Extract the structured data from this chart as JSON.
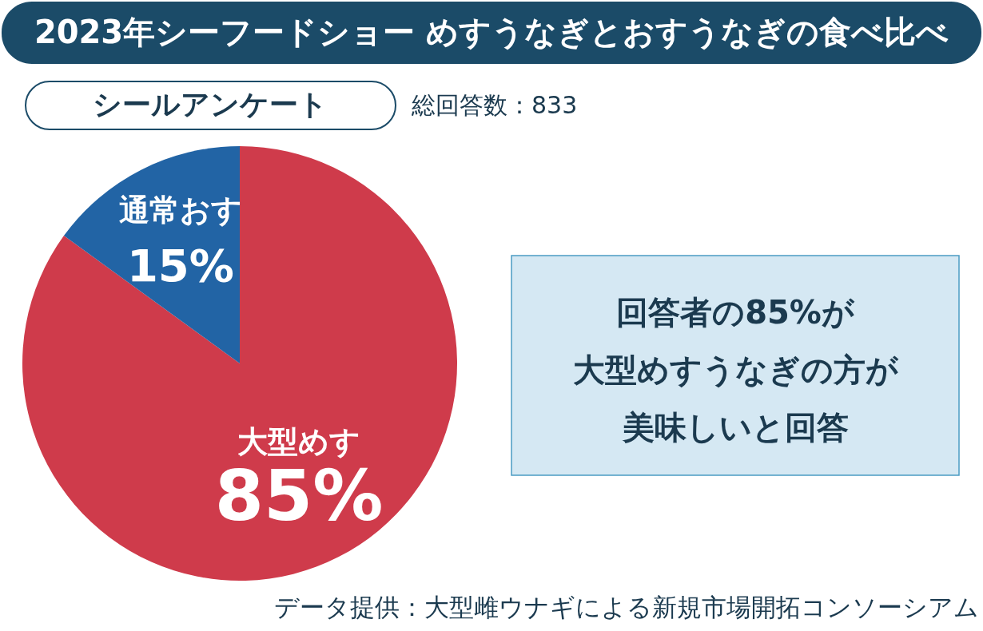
{
  "chart_data": {
    "type": "pie",
    "title": "2023年シーフードショー  めすうなぎとおすうなぎの食べ比べ",
    "subtitle": "シールアンケート",
    "categories": [
      "大型めす",
      "通常おす"
    ],
    "values": [
      85,
      15
    ],
    "colors": [
      "#cf3b4b",
      "#2264a5"
    ],
    "value_labels": [
      "85%",
      "15%"
    ],
    "annotations": [
      "総回答数：833",
      "回答者の85%が",
      "大型めすうなぎの方が",
      "美味しいと回答",
      "データ提供：大型雌ウナギによる新規市場開拓コンソーシアム"
    ]
  }
}
